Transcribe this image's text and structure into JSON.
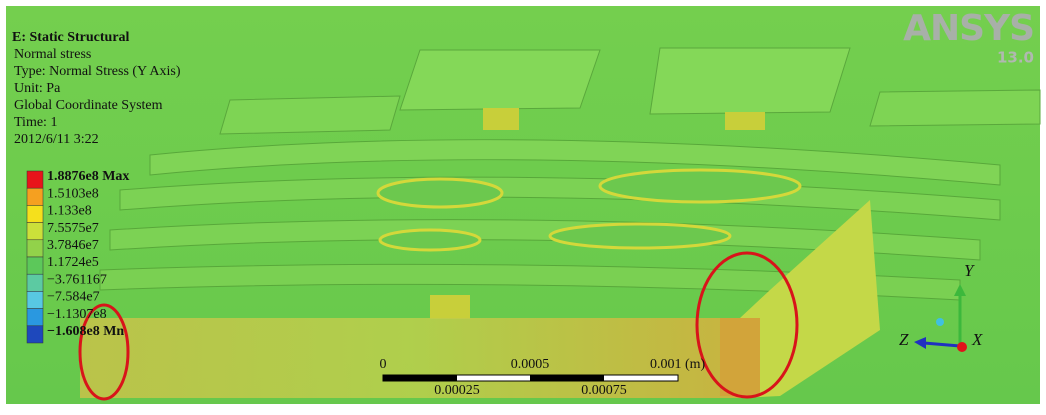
{
  "header": {
    "title": "E: Static Structural",
    "lines": [
      "Normal stress",
      "Type: Normal Stress (Y Axis)",
      "Unit: Pa",
      "Global Coordinate System",
      "Time: 1",
      "2012/6/11  3:22"
    ]
  },
  "legend": {
    "entries": [
      {
        "label": "1.8876e8 Max",
        "color": "#e8141a"
      },
      {
        "label": "1.5103e8",
        "color": "#f5a020"
      },
      {
        "label": "1.133e8",
        "color": "#f5e01c"
      },
      {
        "label": "7.5575e7",
        "color": "#cbe03a"
      },
      {
        "label": "3.7846e7",
        "color": "#92d24a"
      },
      {
        "label": "1.1724e5",
        "color": "#5cc85a"
      },
      {
        "label": "−3.761167",
        "color": "#5ccaa2"
      },
      {
        "label": "−7.584e7",
        "color": "#58c8e2"
      },
      {
        "label": "−1.1307e8",
        "color": "#2a98e0"
      },
      {
        "label": "−1.608e8 Mn",
        "color": "#1e48bc"
      }
    ]
  },
  "scale_bar": {
    "top_labels": [
      "0",
      "0.0005",
      "0.001 (m)"
    ],
    "bottom_labels": [
      "0.00025",
      "0.00075"
    ]
  },
  "logo": {
    "name": "ANSYS",
    "version": "13.0"
  },
  "triad": {
    "y": "Y",
    "z": "Z",
    "x": "X"
  }
}
